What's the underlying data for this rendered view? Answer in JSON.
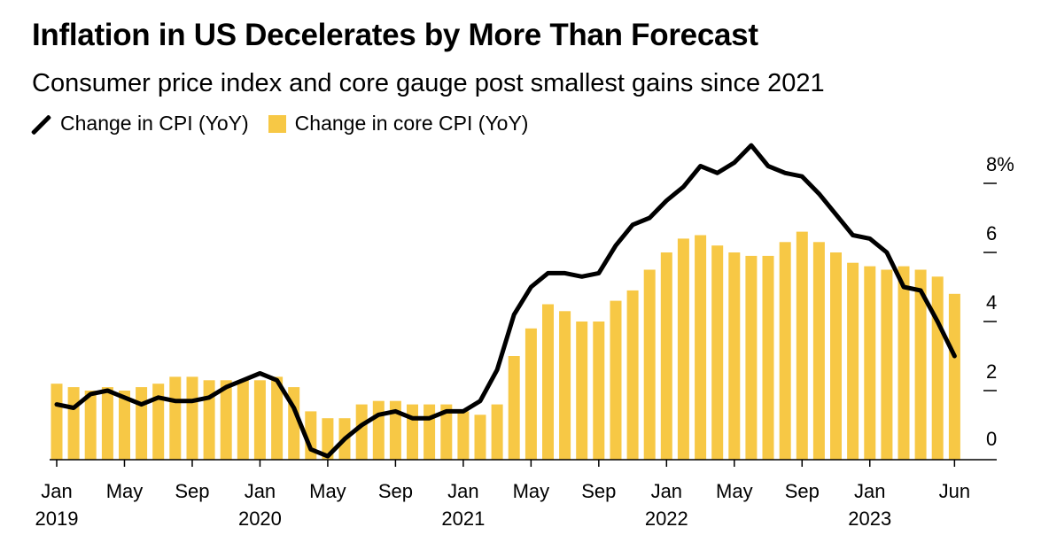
{
  "title": "Inflation in US Decelerates by More Than Forecast",
  "subtitle": "Consumer price index and core gauge post smallest gains since 2021",
  "legend": {
    "line_label": "Change in CPI (YoY)",
    "bar_label": "Change in core CPI (YoY)"
  },
  "colors": {
    "bar": "#F7C845",
    "line": "#000000",
    "axis": "#000000"
  },
  "chart_data": {
    "type": "bar",
    "title": "Inflation in US Decelerates by More Than Forecast",
    "subtitle": "Consumer price index and core gauge post smallest gains since 2021",
    "x": [
      "2019-01",
      "2019-02",
      "2019-03",
      "2019-04",
      "2019-05",
      "2019-06",
      "2019-07",
      "2019-08",
      "2019-09",
      "2019-10",
      "2019-11",
      "2019-12",
      "2020-01",
      "2020-02",
      "2020-03",
      "2020-04",
      "2020-05",
      "2020-06",
      "2020-07",
      "2020-08",
      "2020-09",
      "2020-10",
      "2020-11",
      "2020-12",
      "2021-01",
      "2021-02",
      "2021-03",
      "2021-04",
      "2021-05",
      "2021-06",
      "2021-07",
      "2021-08",
      "2021-09",
      "2021-10",
      "2021-11",
      "2021-12",
      "2022-01",
      "2022-02",
      "2022-03",
      "2022-04",
      "2022-05",
      "2022-06",
      "2022-07",
      "2022-08",
      "2022-09",
      "2022-10",
      "2022-11",
      "2022-12",
      "2023-01",
      "2023-02",
      "2023-03",
      "2023-04",
      "2023-05",
      "2023-06"
    ],
    "series": [
      {
        "name": "Change in core CPI (YoY)",
        "type": "bar",
        "values": [
          2.2,
          2.1,
          2.0,
          2.1,
          2.0,
          2.1,
          2.2,
          2.4,
          2.4,
          2.3,
          2.3,
          2.3,
          2.3,
          2.4,
          2.1,
          1.4,
          1.2,
          1.2,
          1.6,
          1.7,
          1.7,
          1.6,
          1.6,
          1.6,
          1.4,
          1.3,
          1.6,
          3.0,
          3.8,
          4.5,
          4.3,
          4.0,
          4.0,
          4.6,
          4.9,
          5.5,
          6.0,
          6.4,
          6.5,
          6.2,
          6.0,
          5.9,
          5.9,
          6.3,
          6.6,
          6.3,
          6.0,
          5.7,
          5.6,
          5.5,
          5.6,
          5.5,
          5.3,
          4.8
        ]
      },
      {
        "name": "Change in CPI (YoY)",
        "type": "line",
        "values": [
          1.6,
          1.5,
          1.9,
          2.0,
          1.8,
          1.6,
          1.8,
          1.7,
          1.7,
          1.8,
          2.1,
          2.3,
          2.5,
          2.3,
          1.5,
          0.3,
          0.1,
          0.6,
          1.0,
          1.3,
          1.4,
          1.2,
          1.2,
          1.4,
          1.4,
          1.7,
          2.6,
          4.2,
          5.0,
          5.4,
          5.4,
          5.3,
          5.4,
          6.2,
          6.8,
          7.0,
          7.5,
          7.9,
          8.5,
          8.3,
          8.6,
          9.1,
          8.5,
          8.3,
          8.2,
          7.7,
          7.1,
          6.5,
          6.4,
          6.0,
          5.0,
          4.9,
          4.0,
          3.0
        ]
      }
    ],
    "ylim": [
      0,
      9.2
    ],
    "yticks": [
      "0",
      "2",
      "4",
      "8%"
    ],
    "yticks_with_6": [
      "0",
      "2",
      "4",
      "6",
      "8%"
    ],
    "xticks": [
      {
        "x": "2019-01",
        "line1": "Jan",
        "line2": "2019"
      },
      {
        "x": "2019-05",
        "line1": "May",
        "line2": ""
      },
      {
        "x": "2019-09",
        "line1": "Sep",
        "line2": ""
      },
      {
        "x": "2020-01",
        "line1": "Jan",
        "line2": "2020"
      },
      {
        "x": "2020-05",
        "line1": "May",
        "line2": ""
      },
      {
        "x": "2020-09",
        "line1": "Sep",
        "line2": ""
      },
      {
        "x": "2021-01",
        "line1": "Jan",
        "line2": "2021"
      },
      {
        "x": "2021-05",
        "line1": "May",
        "line2": ""
      },
      {
        "x": "2021-09",
        "line1": "Sep",
        "line2": ""
      },
      {
        "x": "2022-01",
        "line1": "Jan",
        "line2": "2022"
      },
      {
        "x": "2022-05",
        "line1": "May",
        "line2": ""
      },
      {
        "x": "2022-09",
        "line1": "Sep",
        "line2": ""
      },
      {
        "x": "2023-01",
        "line1": "Jan",
        "line2": "2023"
      },
      {
        "x": "2023-06",
        "line1": "Jun",
        "line2": ""
      }
    ],
    "grid": false,
    "legend_position": "top-left"
  }
}
